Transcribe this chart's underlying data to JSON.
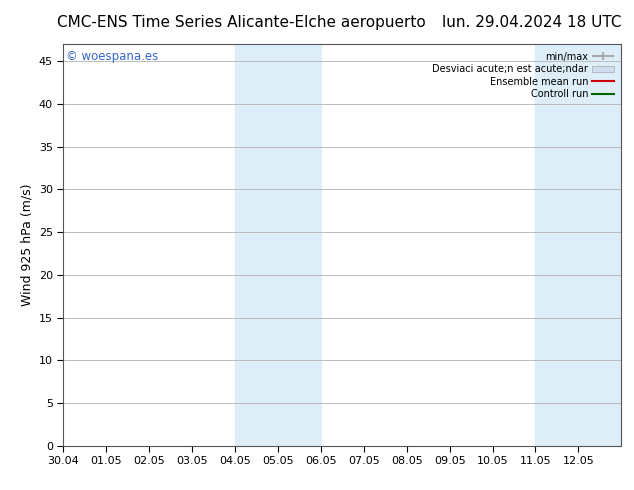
{
  "title": "CMC-ENS Time Series Alicante-Elche aeropuerto",
  "title_right": "lun. 29.04.2024 18 UTC",
  "ylabel": "Wind 925 hPa (m/s)",
  "watermark": "© woespana.es",
  "x_tick_labels": [
    "30.04",
    "01.05",
    "02.05",
    "03.05",
    "04.05",
    "05.05",
    "06.05",
    "07.05",
    "08.05",
    "09.05",
    "10.05",
    "11.05",
    "12.05"
  ],
  "x_tick_positions": [
    0,
    1,
    2,
    3,
    4,
    5,
    6,
    7,
    8,
    9,
    10,
    11,
    12
  ],
  "ylim": [
    0,
    47
  ],
  "yticks": [
    0,
    5,
    10,
    15,
    20,
    25,
    30,
    35,
    40,
    45
  ],
  "shaded_regions": [
    {
      "xmin": 4,
      "xmax": 5,
      "color": "#ddeef8"
    },
    {
      "xmin": 5,
      "xmax": 6,
      "color": "#ddeef8"
    },
    {
      "xmin": 11,
      "xmax": 12,
      "color": "#ddeef8"
    },
    {
      "xmin": 12,
      "xmax": 13,
      "color": "#ddeef8"
    }
  ],
  "background_color": "#ffffff",
  "plot_bg_color": "#ffffff",
  "grid_color": "#bbbbbb",
  "title_fontsize": 11,
  "axis_label_fontsize": 9,
  "tick_fontsize": 8,
  "watermark_color": "#3366cc",
  "border_color": "#555555",
  "legend_label_minmax": "min/max",
  "legend_label_std": "Desviaci acute;n est acute;ndar",
  "legend_label_ens": "Ensemble mean run",
  "legend_label_ctrl": "Controll run",
  "legend_color_minmax": "#aaaaaa",
  "legend_color_std": "#ccddee",
  "legend_color_ens": "#cc0000",
  "legend_color_ctrl": "#006600"
}
